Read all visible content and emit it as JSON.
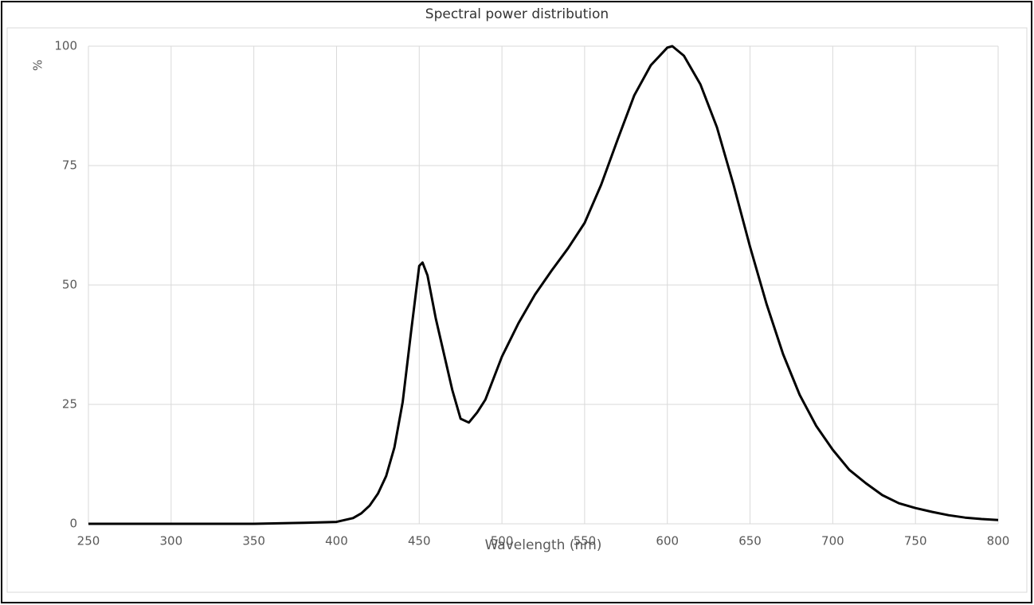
{
  "chart_data": {
    "type": "line",
    "title": "Spectral power distribution",
    "x_label": "Wavelength (nm)",
    "y_label": "%",
    "series": [
      {
        "name": "Spectral power",
        "color": "#000000",
        "x": [
          250,
          300,
          350,
          380,
          400,
          410,
          415,
          420,
          425,
          430,
          435,
          440,
          445,
          450,
          452,
          455,
          460,
          470,
          475,
          480,
          485,
          490,
          500,
          510,
          520,
          530,
          540,
          550,
          560,
          570,
          580,
          590,
          600,
          603,
          610,
          620,
          630,
          640,
          650,
          660,
          670,
          680,
          690,
          700,
          710,
          720,
          730,
          740,
          750,
          760,
          770,
          780,
          790,
          800
        ],
        "values": [
          0,
          0,
          0,
          0.2,
          0.4,
          1.2,
          2.2,
          3.8,
          6.3,
          10,
          16,
          25.5,
          40,
          54,
          54.7,
          52,
          43,
          28,
          22,
          21.2,
          23.3,
          26,
          35,
          42,
          48,
          53,
          57.7,
          63,
          71,
          80.5,
          89.7,
          96,
          99.7,
          100,
          98,
          92,
          83,
          71,
          58,
          46,
          35.5,
          27,
          20.5,
          15.5,
          11.3,
          8.5,
          6,
          4.3,
          3.3,
          2.5,
          1.8,
          1.3,
          1,
          0.8
        ]
      }
    ],
    "xlim": [
      250,
      800
    ],
    "xticks": [
      250,
      300,
      350,
      400,
      450,
      500,
      550,
      600,
      650,
      700,
      750,
      800
    ],
    "ylim": [
      0,
      100
    ],
    "yticks": [
      0,
      25,
      50,
      75,
      100
    ],
    "grid": true
  }
}
